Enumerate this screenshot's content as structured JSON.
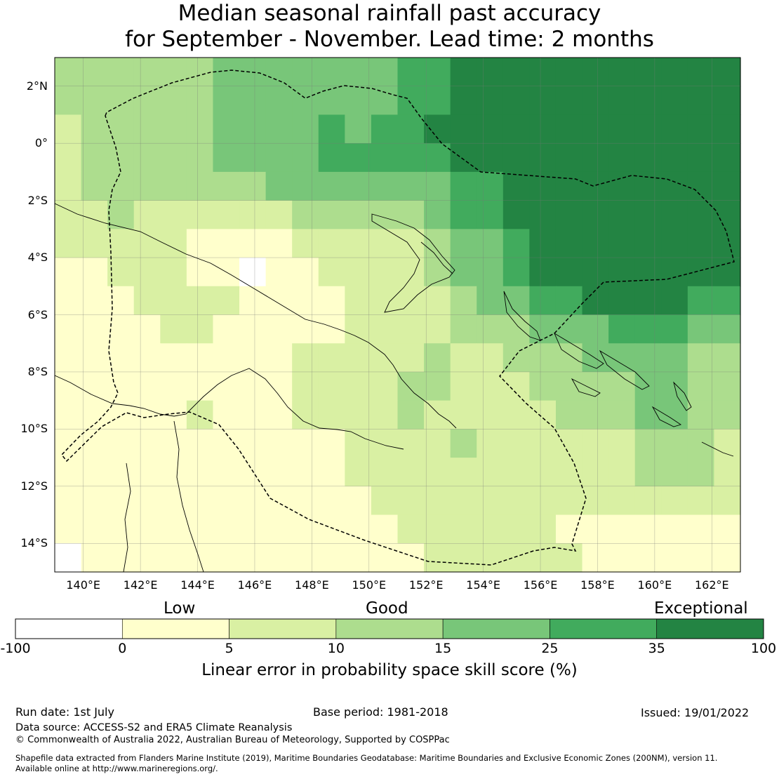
{
  "title_line1": "Median seasonal rainfall past accuracy",
  "title_line2": "for September - November. Lead time: 2 months",
  "map": {
    "lon_range": [
      139,
      163
    ],
    "lat_range": [
      -15,
      3
    ],
    "lat_ticks": [
      {
        "value": 2,
        "label": "2°N"
      },
      {
        "value": 0,
        "label": "0°"
      },
      {
        "value": -2,
        "label": "2°S"
      },
      {
        "value": -4,
        "label": "4°S"
      },
      {
        "value": -6,
        "label": "6°S"
      },
      {
        "value": -8,
        "label": "8°S"
      },
      {
        "value": -10,
        "label": "10°S"
      },
      {
        "value": -12,
        "label": "12°S"
      },
      {
        "value": -14,
        "label": "14°S"
      }
    ],
    "lon_ticks": [
      {
        "value": 140,
        "label": "140°E"
      },
      {
        "value": 142,
        "label": "142°E"
      },
      {
        "value": 144,
        "label": "144°E"
      },
      {
        "value": 146,
        "label": "146°E"
      },
      {
        "value": 148,
        "label": "148°E"
      },
      {
        "value": 150,
        "label": "150°E"
      },
      {
        "value": 152,
        "label": "152°E"
      },
      {
        "value": 154,
        "label": "154°E"
      },
      {
        "value": 156,
        "label": "156°E"
      },
      {
        "value": 158,
        "label": "158°E"
      },
      {
        "value": 160,
        "label": "160°E"
      },
      {
        "value": 162,
        "label": "162°E"
      }
    ],
    "grid_rows_category_index": [
      "33333344444445566666666666",
      "33333344444445566666666666",
      "23333344445455666666666666",
      "23333344445555566666666666",
      "23333333444444455666666666",
      "22322222233333455666666666",
      "22222111122222344566666666",
      "11222110112222344566666666",
      "11122221111222234455666655",
      "11112211111222233344455544",
      "11111111122222322333444433",
      "11111111122223322233334433",
      "11111211122223222223334433",
      "11111111111222232222223332",
      "11111111111222222222223332",
      "11111111111122222222222222",
      "11111111111112222221111111",
      "01111111111111222222111111"
    ]
  },
  "legend": {
    "categories": [
      {
        "label": "Low"
      },
      {
        "label": "Good"
      },
      {
        "label": "Exceptional"
      }
    ],
    "bins": [
      {
        "from": -100,
        "to": 0,
        "color": "#ffffff"
      },
      {
        "from": 0,
        "to": 5,
        "color": "#ffffcc"
      },
      {
        "from": 5,
        "to": 10,
        "color": "#d9f0a3"
      },
      {
        "from": 10,
        "to": 15,
        "color": "#addd8e"
      },
      {
        "from": 15,
        "to": 25,
        "color": "#78c679"
      },
      {
        "from": 25,
        "to": 35,
        "color": "#41ab5d"
      },
      {
        "from": 35,
        "to": 100,
        "color": "#238443"
      }
    ],
    "tick_labels": [
      "-100",
      "0",
      "5",
      "10",
      "15",
      "25",
      "35",
      "100"
    ],
    "axis_label": "Linear error in probability space skill score (%)"
  },
  "footer": {
    "run_date": "Run date: 1st July",
    "base_period": "Base period: 1981-2018",
    "issued": "Issued: 19/01/2022",
    "data_source": "Data source: ACCESS-S2 and ERA5 Climate Reanalysis",
    "copyright": "© Commonwealth of Australia 2022, Australian Bureau of Meteorology, Supported by COSPPac",
    "shapefile_line1": "Shapefile data extracted from Flanders Marine Institute (2019), Maritime Boundaries Geodatabase: Maritime Boundaries and Exclusive Economic Zones (200NM), version 11.",
    "shapefile_line2": "Available online at http://www.marineregions.org/."
  }
}
